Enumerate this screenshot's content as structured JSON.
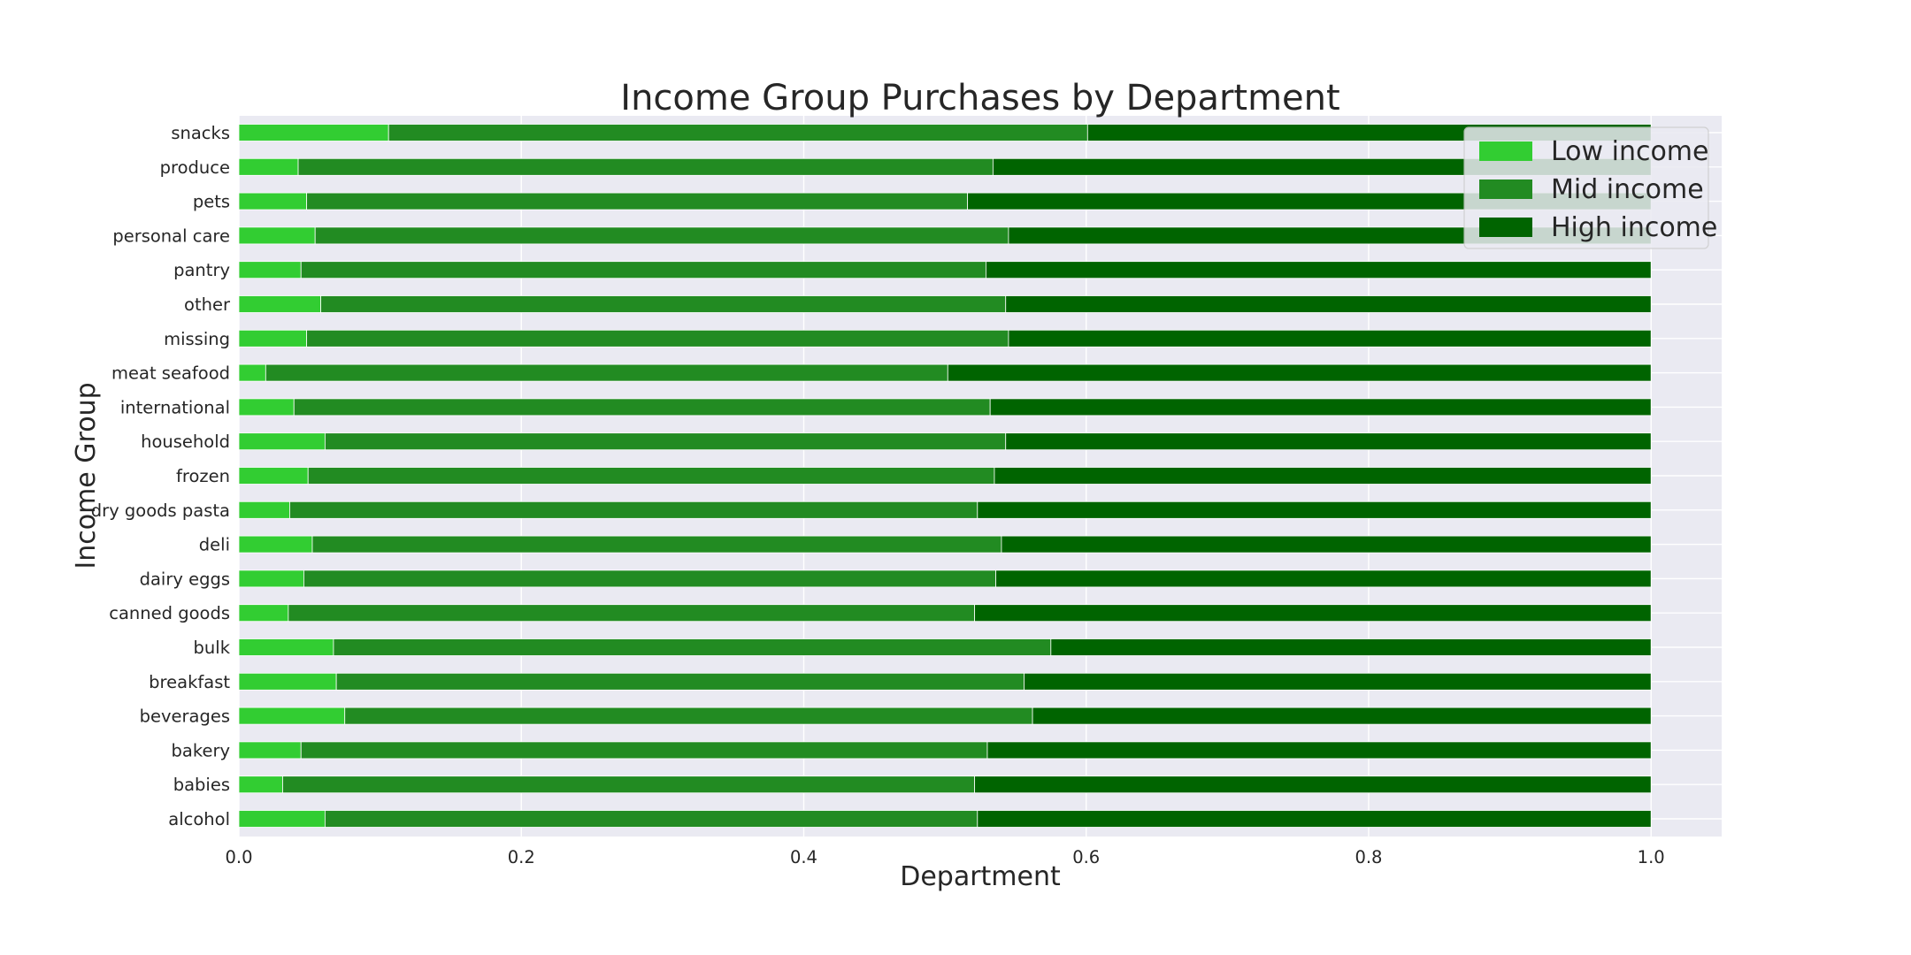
{
  "chart_data": {
    "type": "bar",
    "orientation": "horizontal",
    "stacked": true,
    "title": "Income Group Purchases by Department",
    "xlabel": "Department",
    "ylabel": "Income Group",
    "xlim": [
      0,
      1.05
    ],
    "xticks": [
      "0.0",
      "0.2",
      "0.4",
      "0.6",
      "0.8",
      "1.0"
    ],
    "grid": true,
    "legend_position": "top-right",
    "categories": [
      "alcohol",
      "babies",
      "bakery",
      "beverages",
      "breakfast",
      "bulk",
      "canned goods",
      "dairy eggs",
      "deli",
      "dry goods pasta",
      "frozen",
      "household",
      "international",
      "meat seafood",
      "missing",
      "other",
      "pantry",
      "personal care",
      "pets",
      "produce",
      "snacks"
    ],
    "series": [
      {
        "name": "Low income",
        "color": "#32cd32",
        "values": [
          0.061,
          0.031,
          0.044,
          0.075,
          0.069,
          0.067,
          0.035,
          0.046,
          0.052,
          0.036,
          0.049,
          0.061,
          0.039,
          0.019,
          0.048,
          0.058,
          0.044,
          0.054,
          0.048,
          0.042,
          0.106
        ]
      },
      {
        "name": "Mid income",
        "color": "#228b22",
        "values": [
          0.462,
          0.49,
          0.486,
          0.487,
          0.487,
          0.508,
          0.486,
          0.49,
          0.488,
          0.487,
          0.486,
          0.482,
          0.493,
          0.483,
          0.497,
          0.485,
          0.485,
          0.491,
          0.468,
          0.492,
          0.495
        ]
      },
      {
        "name": "High income",
        "color": "#006400",
        "values": [
          0.477,
          0.479,
          0.47,
          0.438,
          0.444,
          0.425,
          0.479,
          0.464,
          0.46,
          0.477,
          0.465,
          0.457,
          0.468,
          0.498,
          0.455,
          0.457,
          0.471,
          0.455,
          0.484,
          0.466,
          0.399
        ]
      }
    ]
  }
}
